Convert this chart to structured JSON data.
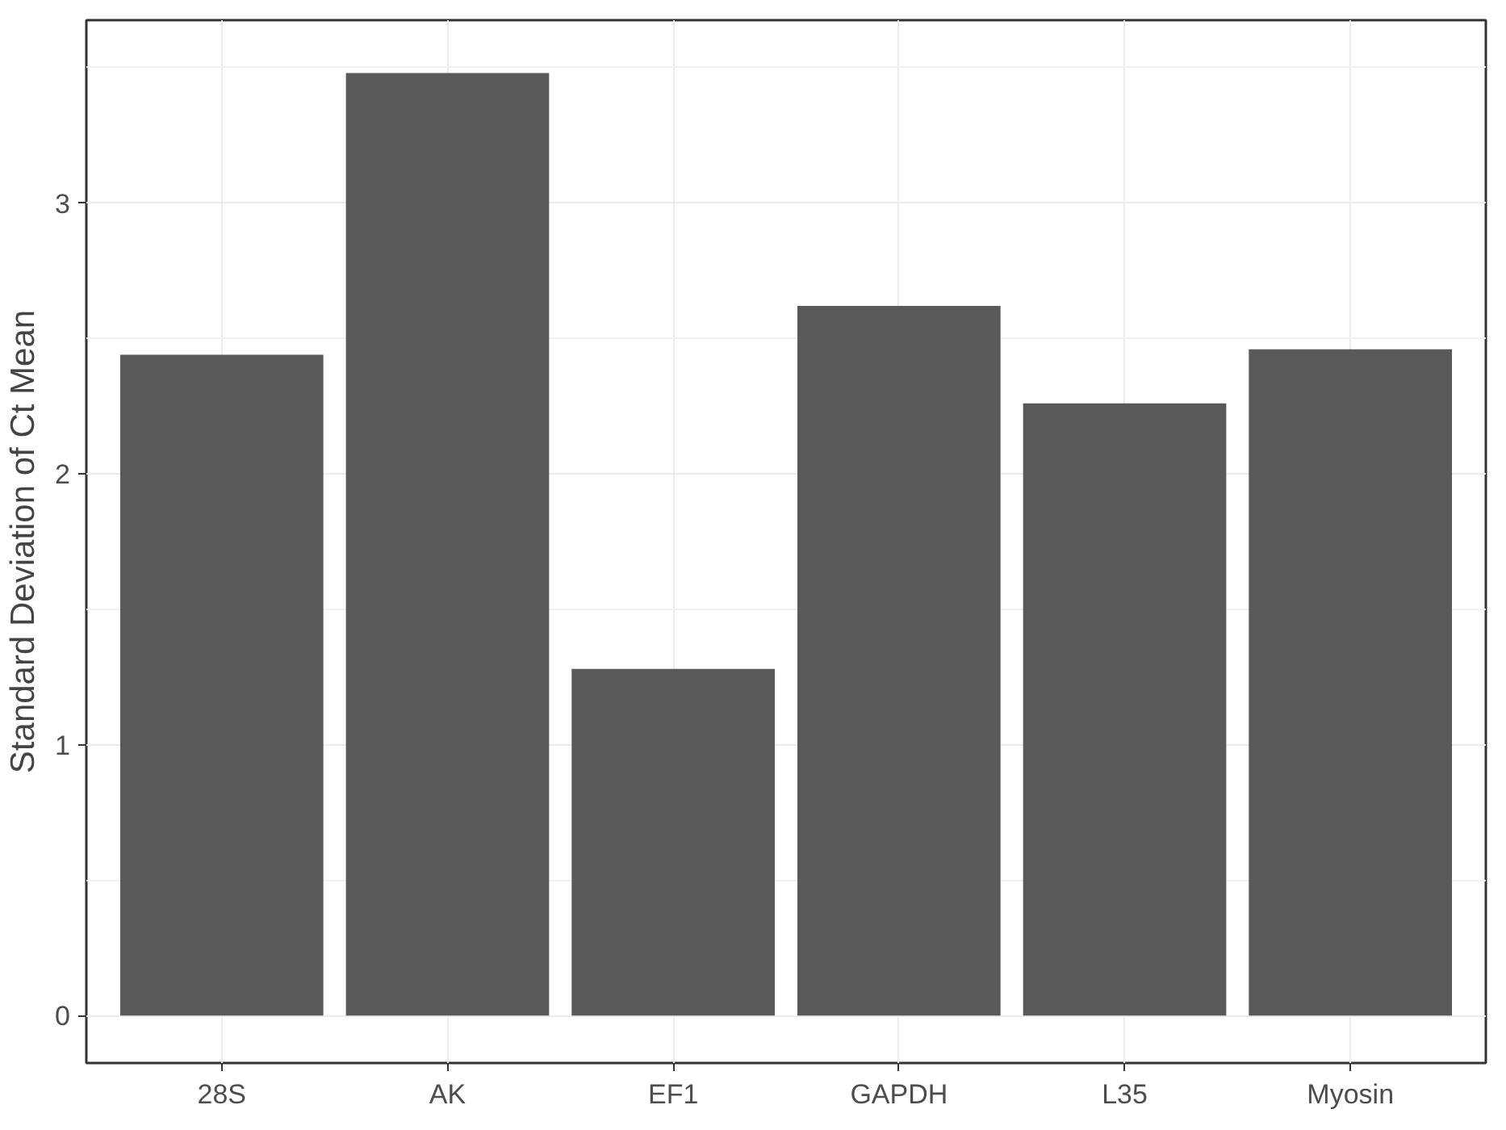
{
  "chart_data": {
    "type": "bar",
    "ylabel": "Standard Deviation of Ct Mean",
    "categories": [
      "28S",
      "AK",
      "EF1",
      "GAPDH",
      "L35",
      "Myosin"
    ],
    "values": [
      2.44,
      3.48,
      1.28,
      2.62,
      2.26,
      2.46
    ],
    "color": "#595959",
    "ylim": [
      -0.175,
      3.675
    ],
    "yticks": [
      0,
      1,
      2,
      3
    ],
    "grid": true
  }
}
